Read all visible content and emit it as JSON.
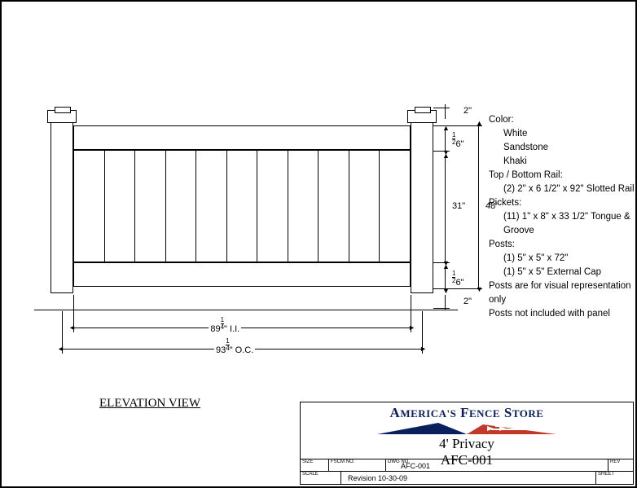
{
  "drawing": {
    "pickets_count": 11,
    "stroke_color": "#000000",
    "background": "#ffffff"
  },
  "dimensions": {
    "top_cap_gap": "2\"",
    "rail_height_top": "6½\"",
    "picket_height": "31\"",
    "overall_height": "48\"",
    "rail_height_bottom": "6½\"",
    "bottom_gap": "2\"",
    "inside_to_inside": "89¼\" I.I.",
    "on_center": "93¼\" O.C."
  },
  "specs": {
    "color_label": "Color:",
    "colors": [
      "White",
      "Sandstone",
      "Khaki"
    ],
    "rail_label": "Top / Bottom Rail:",
    "rail_spec": "(2) 2\" x 6 1/2\" x 92\" Slotted Rail",
    "pickets_label": "Pickets:",
    "pickets_spec": "(11) 1\" x 8\" x 33 1/2\" Tongue & Groove",
    "posts_label": "Posts:",
    "posts_spec1": "(1) 5\" x 5\" x 72\"",
    "posts_spec2": "(1) 5\" x 5\" External Cap",
    "note1": "Posts are for visual representation only",
    "note2": "Posts not included with panel"
  },
  "view_title": "ELEVATION VIEW",
  "title_block": {
    "company": "AMERICA'S FENCE STORE",
    "product": "4' Privacy",
    "code": "AFC-001",
    "logo_colors": {
      "blue": "#0a1f5c",
      "red": "#c0392b",
      "white": "#ffffff"
    },
    "row1": {
      "size_lbl": "SIZE",
      "fscm_lbl": "FSCM NO.",
      "dwg_lbl": "DWG NO.",
      "dwg_val": "AFC-001",
      "rev_lbl": "REV"
    },
    "row2": {
      "scale_lbl": "SCALE",
      "revision": "Revision 10-30-09",
      "sheet_lbl": "SHEET"
    }
  }
}
